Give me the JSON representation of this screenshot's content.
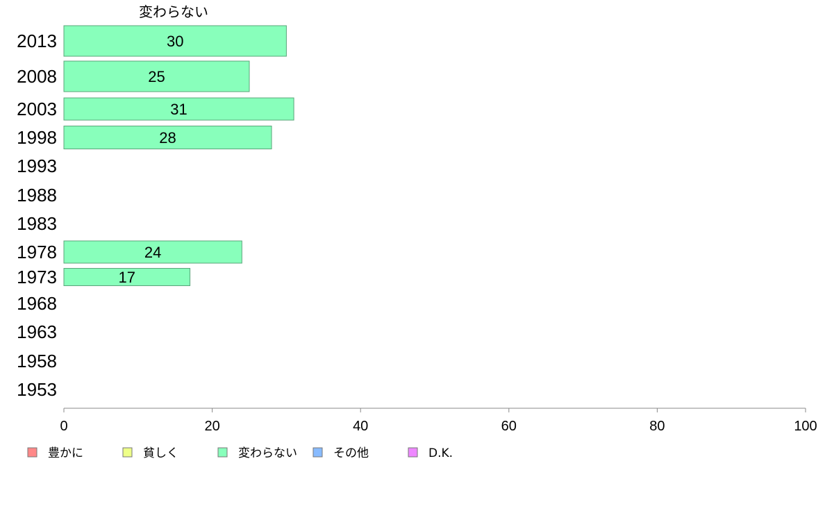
{
  "chart_data": {
    "type": "bar",
    "orientation": "horizontal",
    "title": "変わらない",
    "categories": [
      "2013",
      "2008",
      "2003",
      "1998",
      "1993",
      "1988",
      "1983",
      "1978",
      "1973",
      "1968",
      "1963",
      "1958",
      "1953"
    ],
    "values": [
      30,
      25,
      31,
      28,
      null,
      null,
      null,
      24,
      17,
      null,
      null,
      null,
      null
    ],
    "bar_color": "#88ffbb",
    "bar_border": "#5aa47a",
    "xlim": [
      0,
      100
    ],
    "xticks": [
      0,
      20,
      40,
      60,
      80,
      100
    ],
    "grid": false,
    "legend_position": "bottom",
    "legend": [
      {
        "label": "豊かに",
        "color": "#ff8888"
      },
      {
        "label": "貧しく",
        "color": "#eeff88"
      },
      {
        "label": "変わらない",
        "color": "#88ffbb"
      },
      {
        "label": "その他",
        "color": "#88bbff"
      },
      {
        "label": "D.K.",
        "color": "#ee88ff"
      }
    ]
  }
}
